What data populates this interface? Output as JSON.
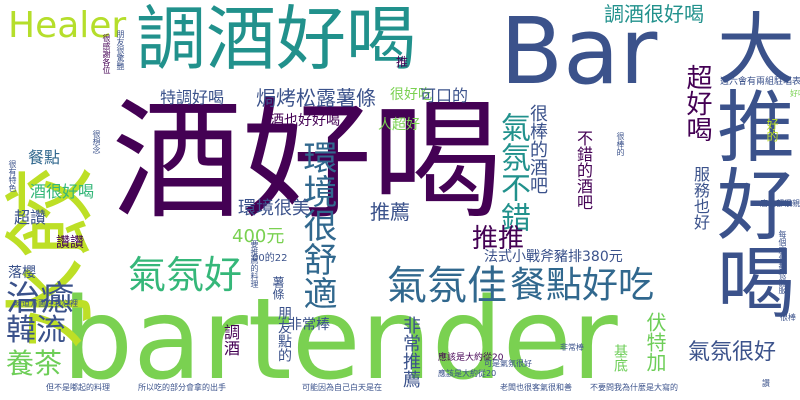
{
  "words": [
    {
      "text": "酒好喝",
      "color": "#440154"
    },
    {
      "text": "bartender",
      "color": "#7ad151"
    },
    {
      "text": "Bar",
      "color": "#3b528b"
    },
    {
      "text": "大推好喝",
      "color": "#3b528b"
    },
    {
      "text": "水餃",
      "color": "#bddf26"
    },
    {
      "text": "調酒好喝",
      "color": "#21918c"
    },
    {
      "text": "Healer",
      "color": "#b5de2b"
    },
    {
      "text": "氣氛好",
      "color": "#35b779"
    },
    {
      "text": "氣氛佳",
      "color": "#31688e"
    },
    {
      "text": "餐點好吃",
      "color": "#31688e"
    },
    {
      "text": "治癒",
      "color": "#3b528b"
    },
    {
      "text": "韓流",
      "color": "#3b528b"
    },
    {
      "text": "養茶",
      "color": "#6ece58"
    },
    {
      "text": "環境很舒適",
      "color": "#31688e"
    },
    {
      "text": "氣氛不錯",
      "color": "#21918c"
    },
    {
      "text": "推推",
      "color": "#440154"
    },
    {
      "text": "推薦",
      "color": "#3b528b"
    },
    {
      "text": "超好喝",
      "color": "#440154"
    },
    {
      "text": "調酒很好喝",
      "color": "#21918c"
    },
    {
      "text": "特調好喝",
      "color": "#3b528b"
    },
    {
      "text": "焗烤松露薯條",
      "color": "#3b528b"
    },
    {
      "text": "酒也好好喝",
      "color": "#440154"
    },
    {
      "text": "很好吃",
      "color": "#7ad151"
    },
    {
      "text": "可口的",
      "color": "#3b528b"
    },
    {
      "text": "人超好",
      "color": "#7ad151"
    },
    {
      "text": "很棒的酒吧",
      "color": "#3b528b"
    },
    {
      "text": "不錯的酒吧",
      "color": "#440154"
    },
    {
      "text": "服務也好",
      "color": "#3b528b"
    },
    {
      "text": "環境很美",
      "color": "#3b528b"
    },
    {
      "text": "400元",
      "color": "#7ad151"
    },
    {
      "text": "餐點",
      "color": "#31688e"
    },
    {
      "text": "酒很好喝",
      "color": "#35b779"
    },
    {
      "text": "超讚",
      "color": "#3b528b"
    },
    {
      "text": "讚讚",
      "color": "#440154"
    },
    {
      "text": "法式小戰斧豬排380元",
      "color": "#3b528b"
    },
    {
      "text": "落櫻",
      "color": "#3b528b"
    },
    {
      "text": "非常棒",
      "color": "#3b528b"
    },
    {
      "text": "非常推薦",
      "color": "#3b528b"
    },
    {
      "text": "朋友點的",
      "color": "#3b528b"
    },
    {
      "text": "基底",
      "color": "#6ece58"
    },
    {
      "text": "伏特加",
      "color": "#6ece58"
    },
    {
      "text": "氣氛很好",
      "color": "#3b528b"
    },
    {
      "text": "調酒",
      "color": "#440154"
    },
    {
      "text": "薯條",
      "color": "#3b528b"
    },
    {
      "text": "好的",
      "color": "#bddf26"
    },
    {
      "text": "推",
      "color": "#440154"
    },
    {
      "text": "00的22",
      "color": "#3b528b"
    },
    {
      "text": "應該是大約從20",
      "color": "#440154"
    },
    {
      "text": "週六會有兩組駐唱表演",
      "color": "#3b528b"
    },
    {
      "text": "可是氣氛很好",
      "color": "#3b528b"
    },
    {
      "text": "不要問我為什麼是大寫的",
      "color": "#3b528b"
    },
    {
      "text": "但不是嘟起的料理",
      "color": "#3b528b"
    },
    {
      "text": "所以吃的部分會拿的出手",
      "color": "#3b528b"
    },
    {
      "text": "可能因為自己白天是在",
      "color": "#3b528b"
    },
    {
      "text": "老闆也很客氣很和善",
      "color": "#3b528b"
    },
    {
      "text": "應該是大約從20",
      "color": "#3b528b"
    },
    {
      "text": "很感謝各位",
      "color": "#440154"
    },
    {
      "text": "朋友很驚艷",
      "color": "#3b528b"
    },
    {
      "text": "要推薦的料理",
      "color": "#3b528b"
    },
    {
      "text": "很想念",
      "color": "#3b528b"
    },
    {
      "text": "很棒的",
      "color": "#3b528b"
    },
    {
      "text": "非常棒",
      "color": "#3b528b"
    },
    {
      "text": "每個座位都很舒服",
      "color": "#3b528b"
    },
    {
      "text": "店員都很親切",
      "color": "#3b528b"
    },
    {
      "text": "很有特色",
      "color": "#3b528b"
    },
    {
      "text": "味道方面在我心裡",
      "color": "#3b528b"
    },
    {
      "text": "好喝",
      "color": "#7ad151"
    },
    {
      "text": "很棒",
      "color": "#3b528b"
    },
    {
      "text": "讚",
      "color": "#3b528b"
    }
  ]
}
